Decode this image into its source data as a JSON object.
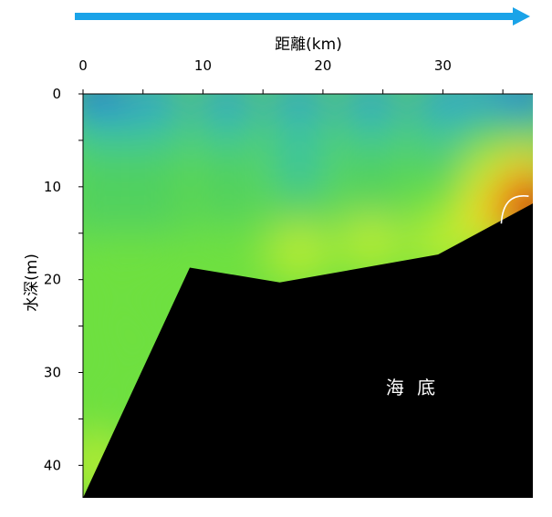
{
  "chart_data": {
    "type": "heatmap",
    "title": "",
    "xlabel": "距離(km)",
    "ylabel": "水深(m)",
    "x_ticks": [
      0,
      10,
      20,
      30
    ],
    "y_ticks": [
      0,
      10,
      20,
      30,
      40
    ],
    "xlim": [
      0,
      37.5
    ],
    "ylim": [
      0,
      43.5
    ],
    "y_inverted": true,
    "x_axis_position": "top",
    "direction_arrow": "left-to-right",
    "seabed_label": "海 底",
    "seabed_color": "#000000",
    "arrow_color": "#1aa3e8",
    "seabed_profile": [
      {
        "x": 0,
        "y": 43.5
      },
      {
        "x": 8.9,
        "y": 18.7
      },
      {
        "x": 16.4,
        "y": 20.3
      },
      {
        "x": 29.6,
        "y": 17.3
      },
      {
        "x": 37.5,
        "y": 11.8
      }
    ],
    "colorscale": [
      "#1a6fe0",
      "#2f9ed0",
      "#3ac3a0",
      "#4fd060",
      "#6ee040",
      "#b8ec30",
      "#f0e020",
      "#f5a020",
      "#f05020",
      "#e02010"
    ],
    "field_points": [
      {
        "x": 1,
        "y": 1,
        "v": 0.05
      },
      {
        "x": 6,
        "y": 1,
        "v": 0.08
      },
      {
        "x": 12,
        "y": 1,
        "v": 0.12
      },
      {
        "x": 18,
        "y": 1,
        "v": 0.1
      },
      {
        "x": 24,
        "y": 1,
        "v": 0.12
      },
      {
        "x": 30,
        "y": 1,
        "v": 0.15
      },
      {
        "x": 34,
        "y": 1,
        "v": 0.1
      },
      {
        "x": 37,
        "y": 1,
        "v": 0.05
      },
      {
        "x": 1,
        "y": 5,
        "v": 0.22
      },
      {
        "x": 6,
        "y": 5,
        "v": 0.2
      },
      {
        "x": 12,
        "y": 5,
        "v": 0.25
      },
      {
        "x": 18,
        "y": 5,
        "v": 0.2
      },
      {
        "x": 24,
        "y": 5,
        "v": 0.22
      },
      {
        "x": 30,
        "y": 5,
        "v": 0.25
      },
      {
        "x": 34,
        "y": 5,
        "v": 0.3
      },
      {
        "x": 37,
        "y": 5,
        "v": 0.35
      },
      {
        "x": 1,
        "y": 9,
        "v": 0.32
      },
      {
        "x": 6,
        "y": 9,
        "v": 0.28
      },
      {
        "x": 12,
        "y": 9,
        "v": 0.3
      },
      {
        "x": 18,
        "y": 9,
        "v": 0.25
      },
      {
        "x": 24,
        "y": 9,
        "v": 0.28
      },
      {
        "x": 30,
        "y": 9,
        "v": 0.33
      },
      {
        "x": 34,
        "y": 9,
        "v": 0.55
      },
      {
        "x": 37,
        "y": 9,
        "v": 0.72
      },
      {
        "x": 1,
        "y": 13,
        "v": 0.38
      },
      {
        "x": 6,
        "y": 13,
        "v": 0.35
      },
      {
        "x": 12,
        "y": 13,
        "v": 0.35
      },
      {
        "x": 18,
        "y": 13,
        "v": 0.32
      },
      {
        "x": 24,
        "y": 13,
        "v": 0.38
      },
      {
        "x": 30,
        "y": 13,
        "v": 0.4
      },
      {
        "x": 34,
        "y": 13,
        "v": 0.7
      },
      {
        "x": 37,
        "y": 12,
        "v": 0.95
      },
      {
        "x": 2,
        "y": 18,
        "v": 0.42
      },
      {
        "x": 6,
        "y": 18,
        "v": 0.4
      },
      {
        "x": 12,
        "y": 17,
        "v": 0.45
      },
      {
        "x": 18,
        "y": 17,
        "v": 0.5
      },
      {
        "x": 24,
        "y": 16,
        "v": 0.6
      },
      {
        "x": 30,
        "y": 16,
        "v": 0.6
      },
      {
        "x": 3,
        "y": 25,
        "v": 0.45
      },
      {
        "x": 5,
        "y": 27,
        "v": 0.45
      },
      {
        "x": 2,
        "y": 33,
        "v": 0.48
      },
      {
        "x": 1,
        "y": 40,
        "v": 0.5
      }
    ]
  }
}
